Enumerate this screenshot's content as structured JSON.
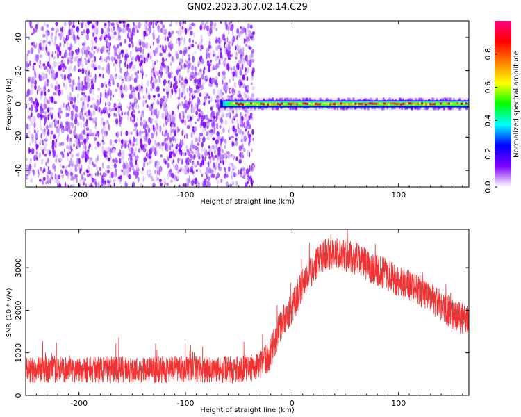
{
  "title": "GN02.2023.307.02.14.C29",
  "colors": {
    "snr_line": "#f03232",
    "background": "#ffffff"
  },
  "chart_data": [
    {
      "type": "heatmap",
      "xlabel": "Height of straight line (km)",
      "ylabel": "Frequency (Hz)",
      "xlim": [
        -250,
        166
      ],
      "ylim": [
        -50,
        50
      ],
      "xticks": [
        -200,
        -100,
        0,
        100
      ],
      "yticks": [
        -40,
        -20,
        0,
        20,
        40
      ],
      "noise_region_x": [
        -250,
        -40
      ],
      "signal_line_frequency": 0,
      "signal_x_range": [
        -70,
        166
      ],
      "colorbar": {
        "label": "Normalized spectral amplitude",
        "range": [
          0.0,
          1.0
        ],
        "ticks": [
          "0.0",
          "0.2",
          "0.4",
          "0.6",
          "0.8"
        ],
        "colormap": [
          "#ffffff",
          "#7f00ff",
          "#0000ff",
          "#00ffff",
          "#00ff00",
          "#ffff00",
          "#ff8000",
          "#ff0000",
          "#ff0080"
        ]
      }
    },
    {
      "type": "line",
      "xlabel": "Height of straight line (km)",
      "ylabel": "SNR (10 * v/v)",
      "xlim": [
        -250,
        166
      ],
      "ylim": [
        0,
        3900
      ],
      "xticks": [
        -200,
        -100,
        0,
        100
      ],
      "yticks": [
        0,
        1000,
        2000,
        3000
      ],
      "trend": {
        "x": [
          -250,
          -200,
          -150,
          -100,
          -50,
          -30,
          -20,
          -10,
          0,
          10,
          20,
          30,
          40,
          60,
          80,
          100,
          120,
          140,
          166
        ],
        "y": [
          600,
          620,
          600,
          620,
          600,
          700,
          1000,
          1700,
          2050,
          2600,
          3000,
          3300,
          3350,
          3200,
          2950,
          2700,
          2450,
          2100,
          1700
        ]
      }
    }
  ]
}
